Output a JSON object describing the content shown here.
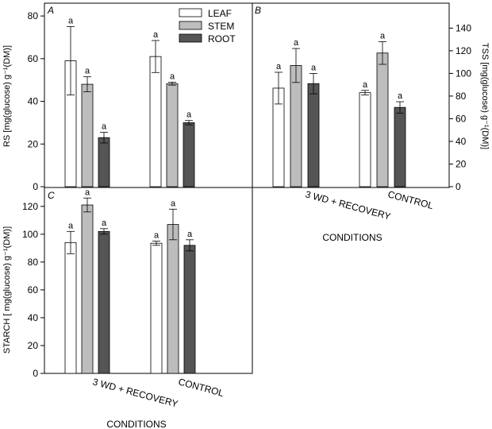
{
  "figure": {
    "legend": [
      "LEAF",
      "STEM",
      "ROOT"
    ],
    "colors": {
      "LEAF": "#ffffff",
      "STEM": "#bdbdbd",
      "ROOT": "#555555"
    },
    "conditions_label": "CONDITIONS"
  },
  "chart_data": [
    {
      "panel": "A",
      "type": "bar",
      "categories": [
        "3 WD + RECOVERY",
        "CONTROL"
      ],
      "series": [
        {
          "name": "LEAF",
          "values": [
            59,
            61
          ],
          "errors": [
            16,
            7.5
          ],
          "labels": [
            "a",
            "a"
          ]
        },
        {
          "name": "STEM",
          "values": [
            48,
            48.3
          ],
          "errors": [
            3.5,
            0.7
          ],
          "labels": [
            "a",
            "a"
          ]
        },
        {
          "name": "ROOT",
          "values": [
            23,
            30
          ],
          "errors": [
            2.5,
            1
          ],
          "labels": [
            "a",
            "a"
          ]
        }
      ],
      "ylabel": "RS [mg(glucose) g⁻¹(DM)]",
      "ylim": [
        0,
        86
      ],
      "yticks": [
        0,
        20,
        40,
        60,
        80
      ],
      "xlabel": ""
    },
    {
      "panel": "B",
      "type": "bar",
      "categories": [
        "3 WD + RECOVERY",
        "CONTROL"
      ],
      "series": [
        {
          "name": "LEAF",
          "values": [
            87,
            83
          ],
          "errors": [
            14,
            2
          ],
          "labels": [
            "a",
            "a"
          ]
        },
        {
          "name": "STEM",
          "values": [
            107,
            118
          ],
          "errors": [
            15,
            10
          ],
          "labels": [
            "a",
            "a"
          ]
        },
        {
          "name": "ROOT",
          "values": [
            91,
            70
          ],
          "errors": [
            9,
            5
          ],
          "labels": [
            "a",
            "a"
          ]
        }
      ],
      "ylabel": "TSS [mg(glucose) g⁻¹(DM)]",
      "ylim": [
        0,
        162
      ],
      "yticks": [
        0,
        20,
        40,
        60,
        80,
        100,
        120,
        140
      ],
      "xlabel": "CONDITIONS"
    },
    {
      "panel": "C",
      "type": "bar",
      "categories": [
        "3 WD + RECOVERY",
        "CONTROL"
      ],
      "series": [
        {
          "name": "LEAF",
          "values": [
            94,
            93.5
          ],
          "errors": [
            8,
            1.5
          ],
          "labels": [
            "a",
            "a"
          ]
        },
        {
          "name": "STEM",
          "values": [
            121,
            107
          ],
          "errors": [
            5,
            11
          ],
          "labels": [
            "a",
            "a"
          ]
        },
        {
          "name": "ROOT",
          "values": [
            102,
            92
          ],
          "errors": [
            2,
            4
          ],
          "labels": [
            "a",
            "a"
          ]
        }
      ],
      "ylabel": "STARCH [ mg(glucose) g⁻¹(DM)]",
      "ylim": [
        0,
        133
      ],
      "yticks": [
        0,
        20,
        40,
        60,
        80,
        100,
        120
      ],
      "xlabel": "CONDITIONS"
    }
  ]
}
